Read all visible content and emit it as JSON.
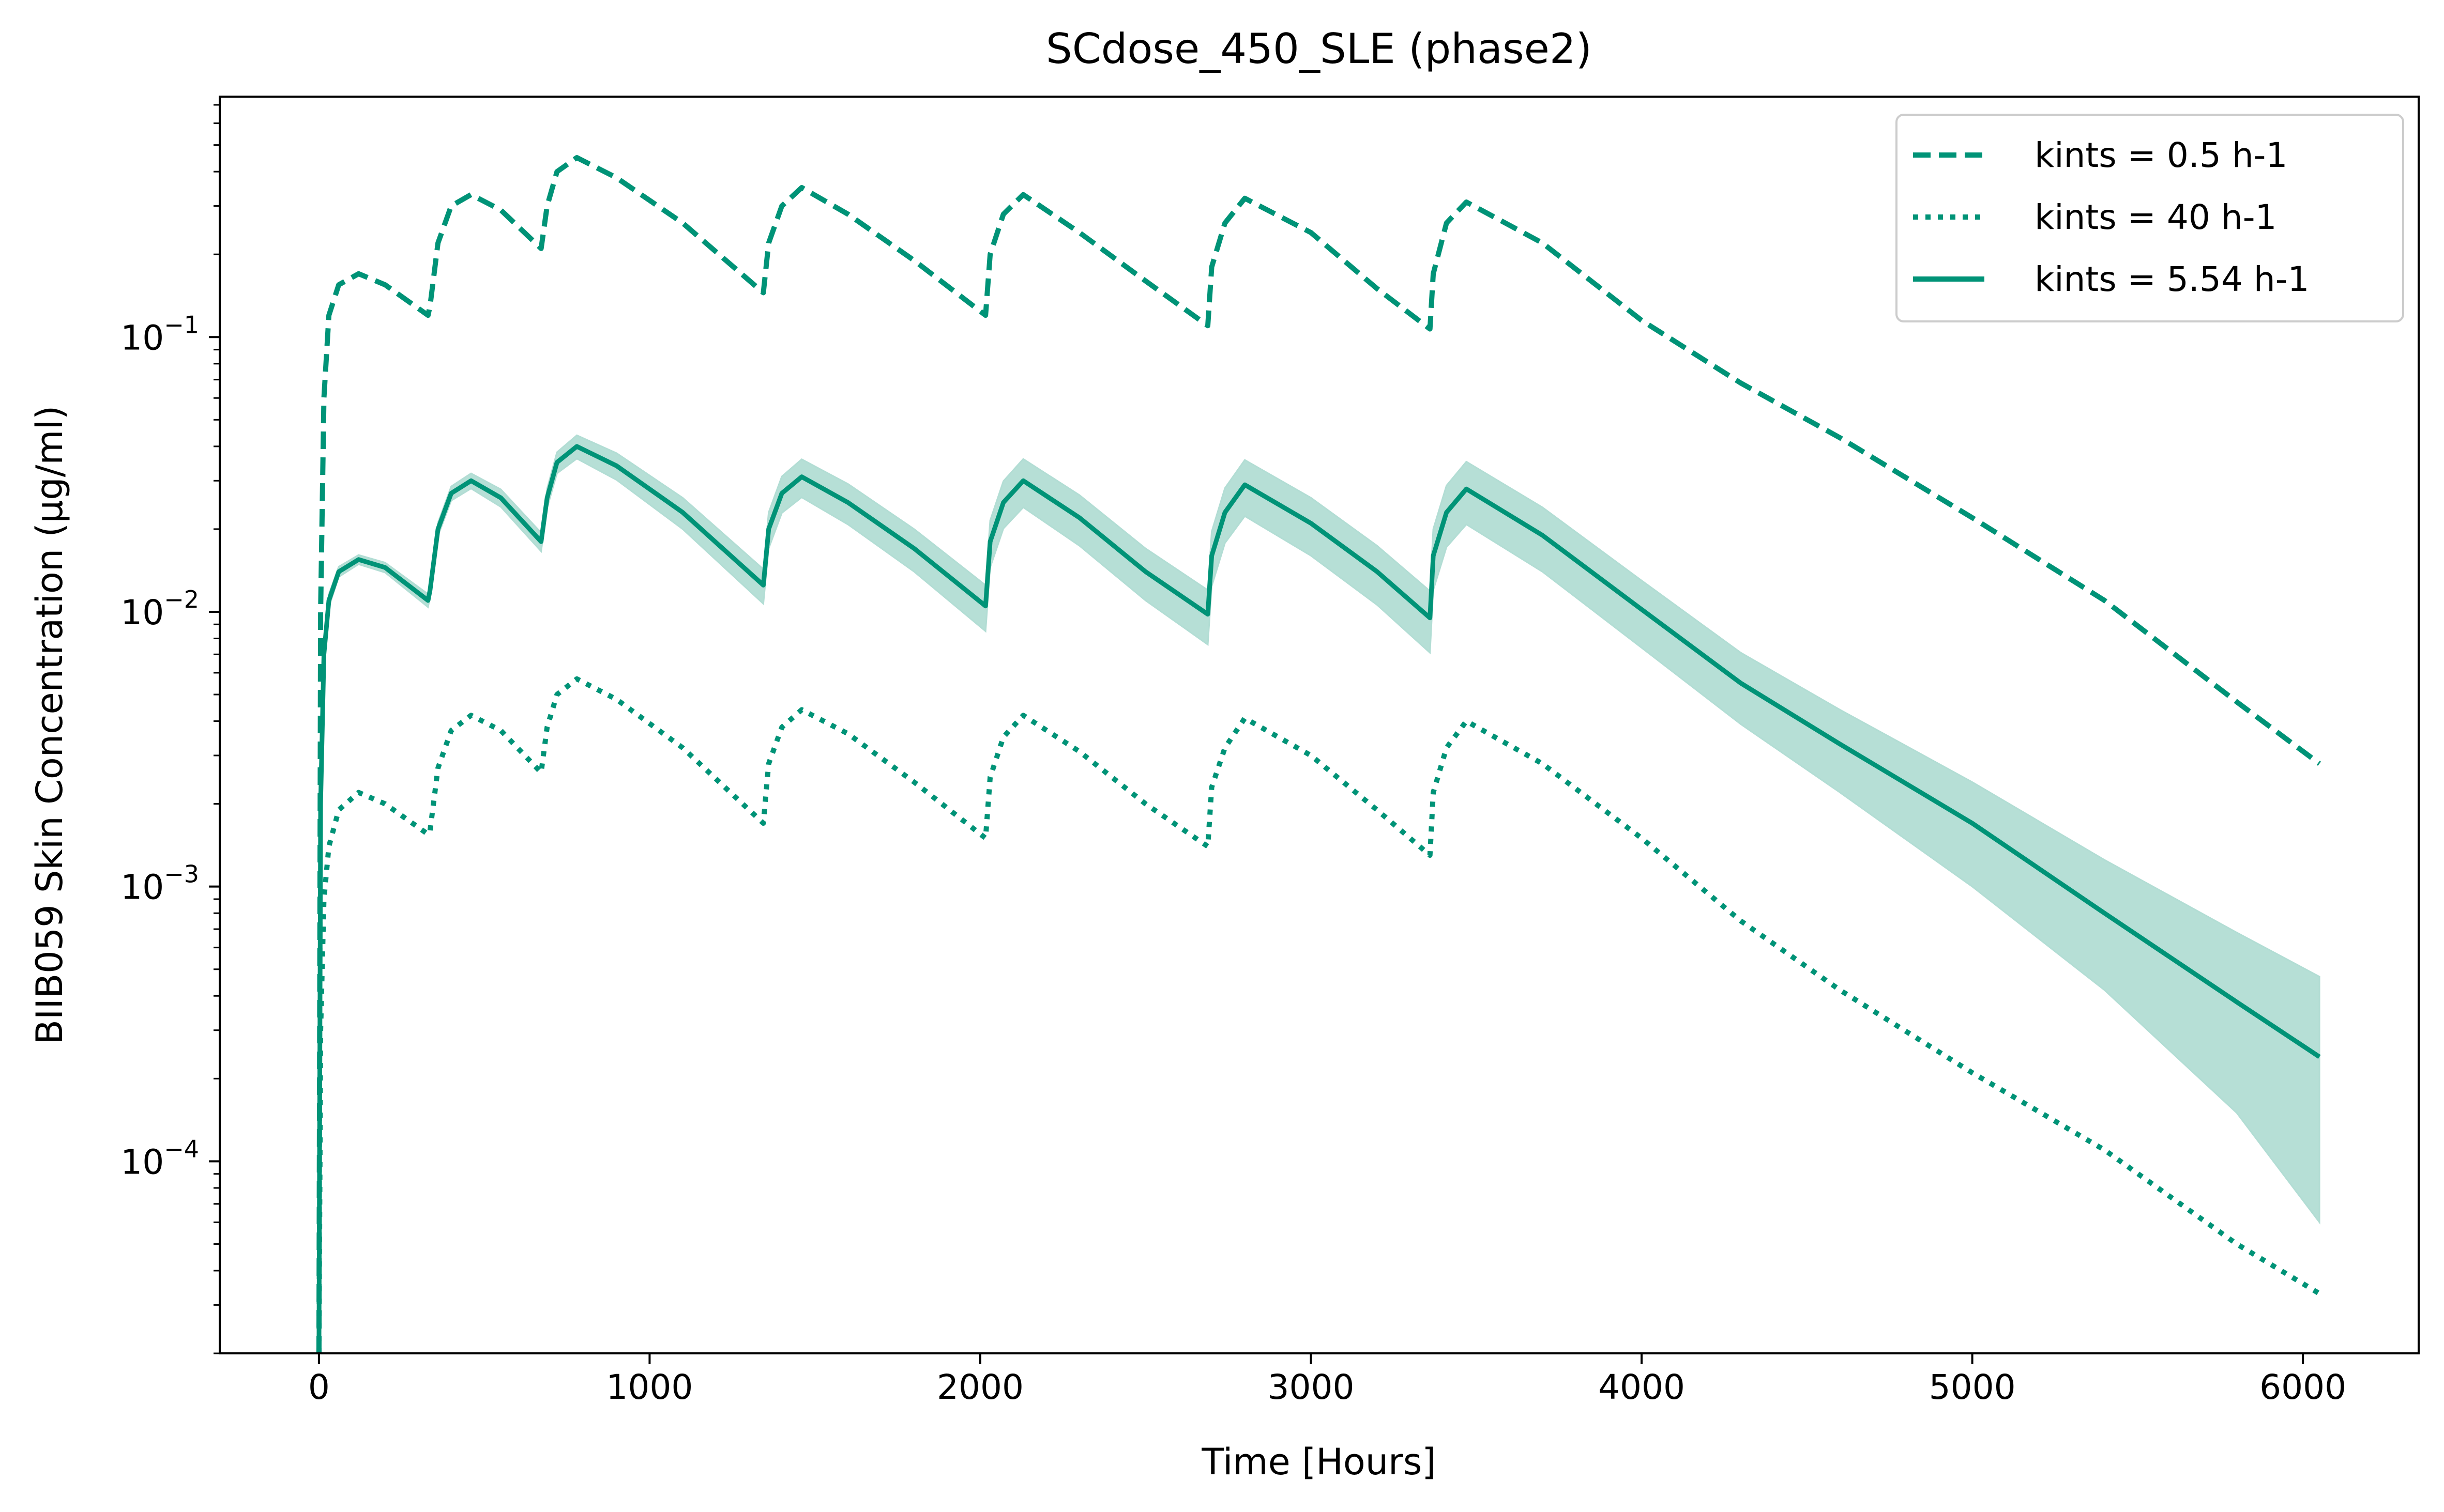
{
  "chart_data": {
    "type": "line",
    "title": "SCdose_450_SLE (phase2)",
    "xlabel": "Time [Hours]",
    "ylabel": "BIIB059 Skin Concentration (µg/ml)",
    "xlim": [
      -300,
      6350
    ],
    "ylim": [
      2e-05,
      0.75
    ],
    "yscale": "log",
    "grid": false,
    "legend_position": "top-right",
    "xticks": [
      0,
      1000,
      2000,
      3000,
      4000,
      5000,
      6000
    ],
    "xtick_labels": [
      "0",
      "1000",
      "2000",
      "3000",
      "4000",
      "5000",
      "6000"
    ],
    "ytick_mantissa": [
      "10",
      "10",
      "10",
      "10"
    ],
    "ytick_exponents": [
      "−1",
      "−2",
      "−3",
      "−4"
    ],
    "yticks": [
      0.1,
      0.01,
      0.001,
      0.0001
    ],
    "series": [
      {
        "name": "kints = 0.5 h-1",
        "style": "dashed",
        "color": "#009377",
        "x": [
          0,
          5,
          15,
          30,
          60,
          120,
          200,
          330,
          336,
          360,
          400,
          460,
          550,
          672,
          690,
          720,
          780,
          900,
          1100,
          1344,
          1360,
          1400,
          1460,
          1600,
          1800,
          2016,
          2030,
          2070,
          2130,
          2300,
          2500,
          2688,
          2700,
          2740,
          2800,
          3000,
          3200,
          3360,
          3370,
          3410,
          3470,
          3700,
          4000,
          4300,
          4600,
          5000,
          5400,
          5800,
          6050
        ],
        "y": [
          2e-05,
          0.01,
          0.06,
          0.12,
          0.155,
          0.17,
          0.155,
          0.12,
          0.13,
          0.22,
          0.3,
          0.33,
          0.29,
          0.21,
          0.3,
          0.4,
          0.45,
          0.38,
          0.26,
          0.145,
          0.22,
          0.3,
          0.35,
          0.28,
          0.19,
          0.12,
          0.2,
          0.28,
          0.33,
          0.24,
          0.16,
          0.11,
          0.18,
          0.26,
          0.32,
          0.24,
          0.15,
          0.107,
          0.17,
          0.26,
          0.31,
          0.22,
          0.115,
          0.068,
          0.043,
          0.022,
          0.011,
          0.0047,
          0.0028
        ]
      },
      {
        "name": "kints = 40 h-1",
        "style": "dotted",
        "color": "#009377",
        "x": [
          0,
          5,
          15,
          30,
          60,
          120,
          200,
          330,
          336,
          360,
          400,
          460,
          550,
          672,
          690,
          720,
          780,
          900,
          1100,
          1344,
          1360,
          1400,
          1460,
          1600,
          1800,
          2016,
          2030,
          2070,
          2130,
          2300,
          2500,
          2688,
          2700,
          2740,
          2800,
          3000,
          3200,
          3360,
          3370,
          3410,
          3470,
          3700,
          4000,
          4300,
          4600,
          5000,
          5400,
          5800,
          6050
        ],
        "y": [
          2e-05,
          0.0003,
          0.0009,
          0.0014,
          0.0019,
          0.0022,
          0.002,
          0.00155,
          0.0016,
          0.0027,
          0.0037,
          0.0042,
          0.0037,
          0.0026,
          0.0038,
          0.005,
          0.0057,
          0.0048,
          0.0032,
          0.0017,
          0.0028,
          0.0038,
          0.0044,
          0.0036,
          0.0024,
          0.0015,
          0.0025,
          0.0035,
          0.0042,
          0.0031,
          0.002,
          0.0014,
          0.0023,
          0.0032,
          0.0041,
          0.003,
          0.0019,
          0.0013,
          0.0022,
          0.0032,
          0.004,
          0.0028,
          0.0015,
          0.00075,
          0.00042,
          0.00021,
          0.00011,
          5e-05,
          3.3e-05
        ]
      },
      {
        "name": "kints = 5.54 h-1",
        "style": "solid",
        "color": "#009377",
        "band_color": "#b2ddd4",
        "x": [
          0,
          5,
          15,
          30,
          60,
          120,
          200,
          330,
          336,
          360,
          400,
          460,
          550,
          672,
          690,
          720,
          780,
          900,
          1100,
          1344,
          1360,
          1400,
          1460,
          1600,
          1800,
          2016,
          2030,
          2070,
          2130,
          2300,
          2500,
          2688,
          2700,
          2740,
          2800,
          3000,
          3200,
          3360,
          3370,
          3410,
          3470,
          3700,
          4000,
          4300,
          4600,
          5000,
          5400,
          5800,
          6050
        ],
        "y": [
          2e-05,
          0.002,
          0.007,
          0.011,
          0.014,
          0.0155,
          0.0145,
          0.011,
          0.012,
          0.02,
          0.027,
          0.03,
          0.026,
          0.018,
          0.026,
          0.035,
          0.04,
          0.034,
          0.023,
          0.0125,
          0.02,
          0.027,
          0.031,
          0.025,
          0.017,
          0.0105,
          0.018,
          0.025,
          0.03,
          0.022,
          0.014,
          0.0098,
          0.016,
          0.023,
          0.029,
          0.021,
          0.014,
          0.0095,
          0.016,
          0.023,
          0.028,
          0.019,
          0.0102,
          0.0055,
          0.0033,
          0.0017,
          0.0008,
          0.00038,
          0.00024
        ],
        "y_lower": [
          2e-05,
          0.0019,
          0.0066,
          0.0104,
          0.0134,
          0.0149,
          0.0139,
          0.0104,
          0.0113,
          0.0189,
          0.0254,
          0.0281,
          0.0241,
          0.0166,
          0.0239,
          0.0319,
          0.0361,
          0.0302,
          0.02,
          0.0107,
          0.017,
          0.0229,
          0.0261,
          0.0208,
          0.014,
          0.0085,
          0.0145,
          0.0201,
          0.024,
          0.0174,
          0.011,
          0.0076,
          0.0124,
          0.0178,
          0.0223,
          0.016,
          0.0106,
          0.0071,
          0.012,
          0.0172,
          0.0208,
          0.014,
          0.0074,
          0.0039,
          0.0022,
          0.001,
          0.00042,
          0.00015,
          6e-05
        ],
        "y_upper": [
          2e-05,
          0.0021,
          0.0074,
          0.0116,
          0.0146,
          0.0161,
          0.0151,
          0.0116,
          0.0127,
          0.0211,
          0.0286,
          0.0319,
          0.0279,
          0.0194,
          0.0281,
          0.0381,
          0.0439,
          0.0378,
          0.026,
          0.0143,
          0.023,
          0.0311,
          0.0359,
          0.0292,
          0.02,
          0.0125,
          0.0215,
          0.0299,
          0.036,
          0.0266,
          0.017,
          0.012,
          0.0196,
          0.0282,
          0.0357,
          0.026,
          0.0174,
          0.0119,
          0.02,
          0.0288,
          0.0352,
          0.024,
          0.013,
          0.0071,
          0.0044,
          0.0024,
          0.00125,
          0.00068,
          0.00047
        ]
      }
    ]
  }
}
